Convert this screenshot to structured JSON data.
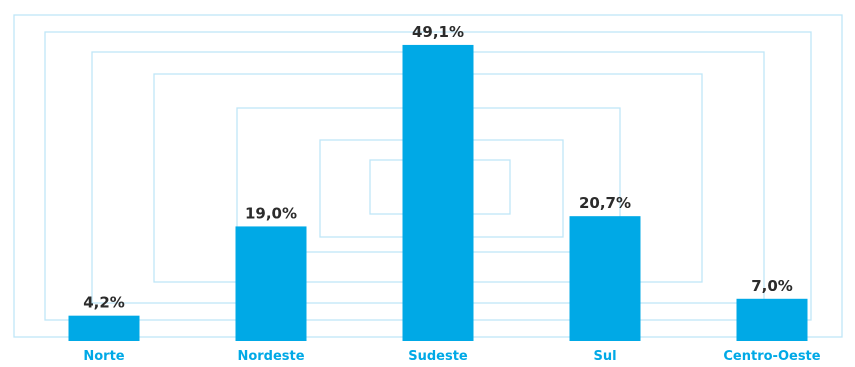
{
  "chart_data": {
    "type": "bar",
    "title": "",
    "xlabel": "",
    "ylabel": "",
    "categories": [
      "Norte",
      "Nordeste",
      "Sudeste",
      "Sul",
      "Centro-Oeste"
    ],
    "values": [
      4.2,
      19.0,
      49.1,
      20.7,
      7.0
    ],
    "value_labels": [
      "4,2%",
      "19,0%",
      "49,1%",
      "20,7%",
      "7,0%"
    ],
    "ylim": [
      0,
      50
    ],
    "grid": false,
    "legend": "none",
    "colors": {
      "bar": "#00a9e6",
      "category_label": "#00a9e6",
      "value_label": "#2b2b2b",
      "decoration": "#bfe6f7"
    }
  }
}
